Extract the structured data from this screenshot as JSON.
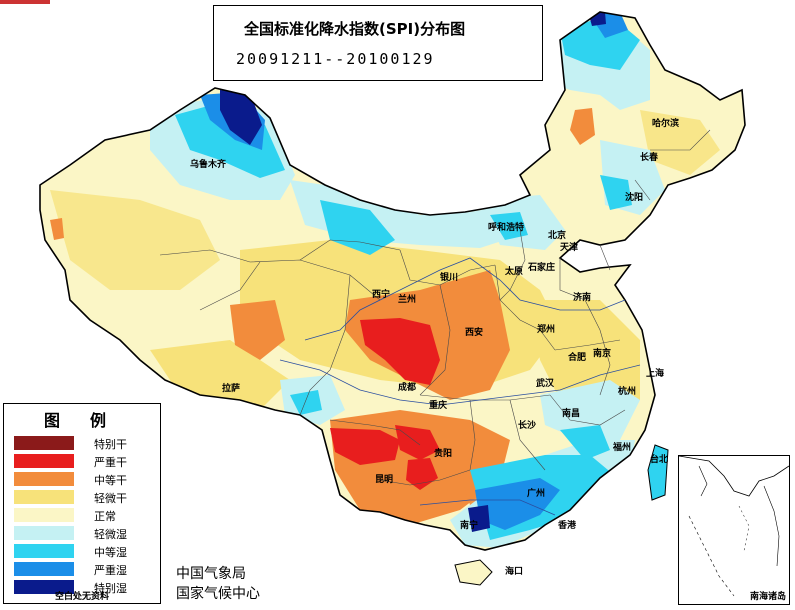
{
  "title": {
    "main": "全国标准化降水指数(SPI)分布图",
    "period": "20091211--20100129"
  },
  "legend": {
    "heading_chars": [
      "图",
      "例"
    ],
    "items": [
      {
        "label": "特别干",
        "color": "#8b1a1a"
      },
      {
        "label": "严重干",
        "color": "#e81e1e"
      },
      {
        "label": "中等干",
        "color": "#f28c3c"
      },
      {
        "label": "轻微干",
        "color": "#f7e27a"
      },
      {
        "label": "正常",
        "color": "#fbf6c6"
      },
      {
        "label": "轻微湿",
        "color": "#c5f1f3"
      },
      {
        "label": "中等湿",
        "color": "#2fd3f0"
      },
      {
        "label": "严重湿",
        "color": "#1b8ee8"
      },
      {
        "label": "特别湿",
        "color": "#0a1b8c"
      }
    ],
    "note": "空白处无资料"
  },
  "credits": {
    "line1": "中国气象局",
    "line2": "国家气候中心"
  },
  "inset_label": "南海诸岛",
  "cities": {
    "wulumuqi": "乌鲁木齐",
    "lasa": "拉萨",
    "xining": "西宁",
    "lanzhou": "兰州",
    "yinchuan": "银川",
    "huhehaote": "呼和浩特",
    "taiyuan": "太原",
    "shijiazhuang": "石家庄",
    "beijing": "北京",
    "tianjin": "天津",
    "jinan": "济南",
    "zhengzhou": "郑州",
    "xian": "西安",
    "chengdu": "成都",
    "chongqing": "重庆",
    "wuhan": "武汉",
    "hefei": "合肥",
    "nanjing": "南京",
    "shanghai": "上海",
    "hangzhou": "杭州",
    "nanchang": "南昌",
    "changsha": "长沙",
    "guiyang": "贵阳",
    "kunming": "昆明",
    "nanning": "南宁",
    "guangzhou": "广州",
    "fuzhou": "福州",
    "taibei": "台北",
    "xianggang": "香港",
    "haikou": "海口",
    "haerbin": "哈尔滨",
    "changchun": "长春",
    "shenyang": "沈阳"
  }
}
